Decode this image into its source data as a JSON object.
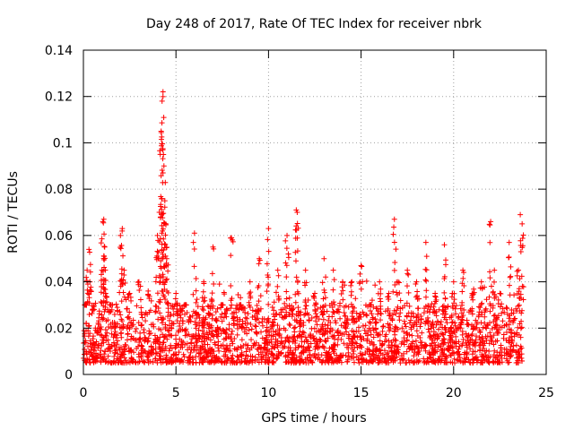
{
  "chart_data": {
    "type": "scatter",
    "title": "Day 248 of 2017, Rate Of TEC Index for receiver nbrk",
    "xlabel": "GPS time / hours",
    "ylabel": "ROTI / TECUs",
    "xlim": [
      0,
      25
    ],
    "ylim": [
      0,
      0.14
    ],
    "xticks": [
      0,
      5,
      10,
      15,
      20,
      25
    ],
    "xtick_labels": [
      "0",
      "5",
      "10",
      "15",
      "20",
      "25"
    ],
    "yticks": [
      0,
      0.02,
      0.04,
      0.06,
      0.08,
      0.1,
      0.12,
      0.14
    ],
    "ytick_labels": [
      "0",
      "0.02",
      "0.04",
      "0.06",
      "0.08",
      "0.1",
      "0.12",
      "0.14"
    ],
    "grid": true,
    "marker": "+",
    "series": [
      {
        "name": "ROTI",
        "color": "#ff0000",
        "x": [
          0.1,
          0.2,
          0.3,
          0.35,
          0.5,
          1.0,
          1.05,
          1.1,
          1.15,
          1.2,
          1.5,
          2.0,
          2.1,
          2.2,
          2.5,
          3.0,
          3.5,
          4.0,
          4.1,
          4.15,
          4.2,
          4.25,
          4.3,
          4.35,
          4.4,
          4.45,
          4.5,
          5.0,
          5.5,
          6.0,
          6.5,
          7.0,
          7.5,
          8.0,
          8.5,
          9.0,
          9.5,
          10.0,
          10.5,
          11.0,
          11.5,
          11.55,
          12.0,
          12.5,
          13.0,
          13.5,
          14.0,
          14.5,
          15.0,
          15.5,
          16.0,
          16.5,
          16.8,
          17.0,
          17.5,
          18.0,
          18.5,
          19.0,
          19.5,
          20.0,
          20.5,
          21.0,
          21.5,
          22.0,
          22.2,
          22.5,
          23.0,
          23.5,
          23.6,
          23.7
        ],
        "y": [
          0.03,
          0.045,
          0.054,
          0.04,
          0.028,
          0.045,
          0.066,
          0.067,
          0.055,
          0.035,
          0.03,
          0.06,
          0.063,
          0.045,
          0.035,
          0.04,
          0.036,
          0.06,
          0.07,
          0.095,
          0.105,
          0.118,
          0.122,
          0.09,
          0.075,
          0.065,
          0.05,
          0.035,
          0.03,
          0.061,
          0.04,
          0.055,
          0.03,
          0.059,
          0.03,
          0.04,
          0.05,
          0.063,
          0.045,
          0.06,
          0.071,
          0.07,
          0.045,
          0.035,
          0.05,
          0.045,
          0.04,
          0.04,
          0.047,
          0.03,
          0.04,
          0.035,
          0.067,
          0.04,
          0.045,
          0.04,
          0.057,
          0.035,
          0.056,
          0.04,
          0.045,
          0.035,
          0.04,
          0.066,
          0.045,
          0.035,
          0.057,
          0.045,
          0.069,
          0.065
        ],
        "baseline_band": [
          0.005,
          0.03
        ]
      }
    ]
  }
}
